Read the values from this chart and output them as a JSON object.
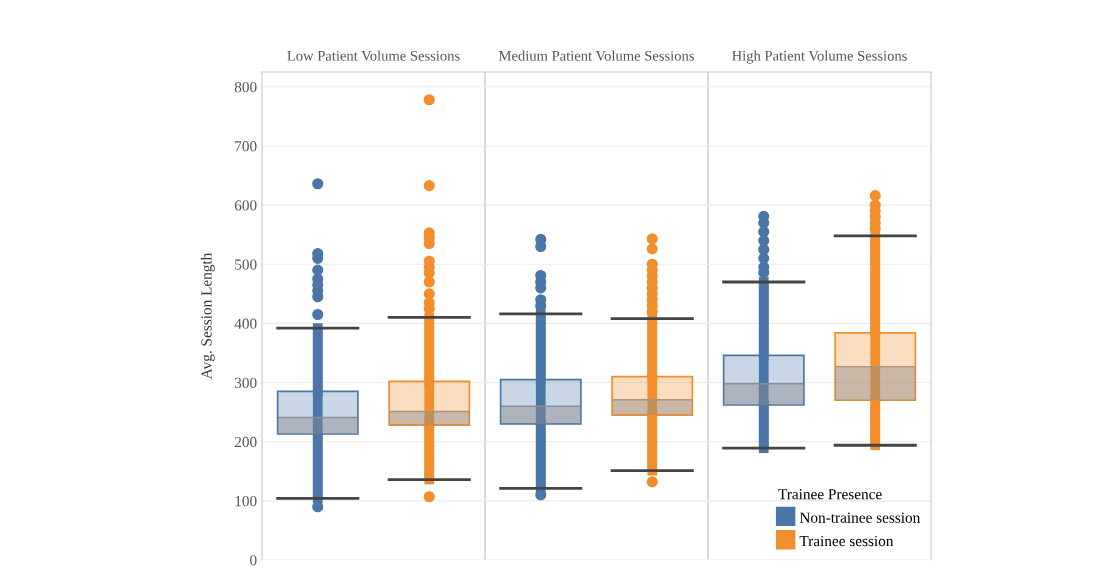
{
  "chart_data": {
    "type": "box",
    "ylabel": "Avg. Session Length",
    "categories": [
      "Low Patient Volume Sessions",
      "Medium Patient Volume Sessions",
      "High Patient Volume Sessions"
    ],
    "ylim": [
      0,
      825
    ],
    "yticks": [
      0,
      100,
      200,
      300,
      400,
      500,
      600,
      700,
      800
    ],
    "grid": "y",
    "legend": "bottom right",
    "legend_title": "Trainee Presence",
    "series": [
      {
        "name": "Non-trainee session",
        "color": "#4a76a8",
        "boxes": [
          {
            "low": 104,
            "q1": 213,
            "median": 241,
            "q3": 285,
            "high": 392,
            "outliers": [
              90,
              415,
              445,
              455,
              465,
              475,
              490,
              510,
              518,
              636
            ]
          },
          {
            "low": 121,
            "q1": 230,
            "median": 260,
            "q3": 305,
            "high": 416,
            "outliers": [
              110,
              430,
              440,
              460,
              470,
              481,
              530,
              542
            ]
          },
          {
            "low": 189,
            "q1": 262,
            "median": 298,
            "q3": 346,
            "high": 470,
            "outliers": [
              486,
              495,
              510,
              525,
              540,
              555,
              570,
              581
            ]
          }
        ]
      },
      {
        "name": "Trainee session",
        "color": "#f28e2b",
        "boxes": [
          {
            "low": 136,
            "q1": 228,
            "median": 251,
            "q3": 302,
            "high": 410,
            "outliers": [
              107,
              425,
              435,
              450,
              470,
              485,
              495,
              505,
              535,
              545,
              553,
              633,
              778
            ]
          },
          {
            "low": 151,
            "q1": 245,
            "median": 271,
            "q3": 310,
            "high": 408,
            "outliers": [
              132,
              420,
              430,
              440,
              450,
              460,
              470,
              480,
              490,
              500,
              526,
              543
            ]
          },
          {
            "low": 194,
            "q1": 270,
            "median": 327,
            "q3": 384,
            "high": 548,
            "outliers": [
              560,
              570,
              580,
              590,
              600,
              616
            ]
          }
        ]
      }
    ]
  }
}
